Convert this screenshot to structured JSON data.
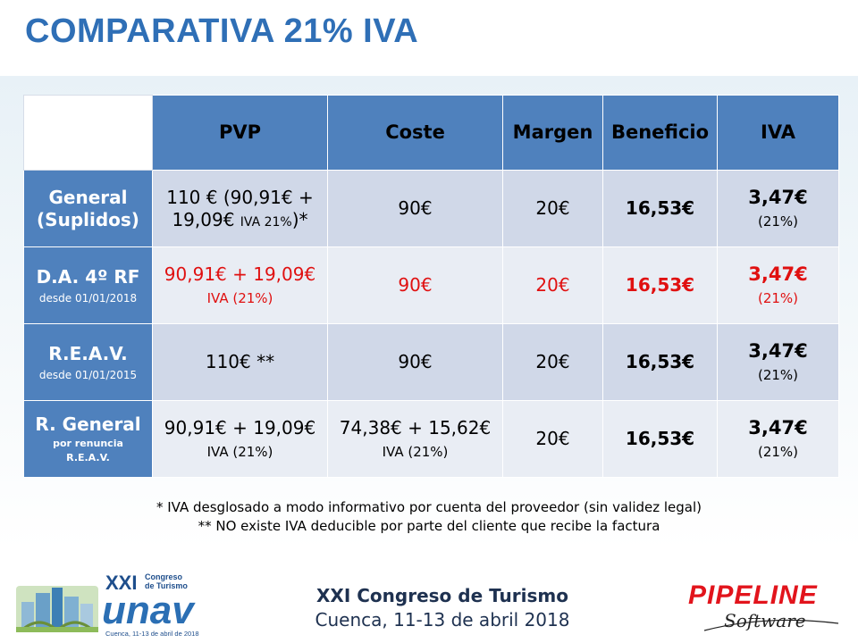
{
  "title": "COMPARATIVA 21% IVA",
  "table": {
    "headers": [
      "PVP",
      "Coste",
      "Margen",
      "Beneficio",
      "IVA"
    ],
    "rows": [
      {
        "label": "General (Suplidos)",
        "label_line1": "General",
        "label_line2": "(Suplidos)",
        "sublabel": "",
        "pvp_line1": "110 € (90,91€ +",
        "pvp_line2a": "19,09€",
        "pvp_line2b": "IVA 21%",
        "pvp_line2c": ")*",
        "coste": "90€",
        "margen": "20€",
        "beneficio": "16,53€",
        "iva": "3,47€",
        "iva_pct": "(21%)"
      },
      {
        "label": "D.A. 4º RF",
        "sublabel": "desde 01/01/2018",
        "pvp_line1": "90,91€ + 19,09€",
        "pvp_line2": "IVA (21%)",
        "coste": "90€",
        "margen": "20€",
        "beneficio": "16,53€",
        "iva": "3,47€",
        "iva_pct": "(21%)"
      },
      {
        "label": "R.E.A.V.",
        "sublabel": "desde 01/01/2015",
        "pvp": "110€ **",
        "coste": "90€",
        "margen": "20€",
        "beneficio": "16,53€",
        "iva": "3,47€",
        "iva_pct": "(21%)"
      },
      {
        "label": "R. General",
        "sublabel_line1": "por renuncia",
        "sublabel_line2": "R.E.A.V.",
        "pvp_line1": "90,91€ + 19,09€",
        "pvp_line2": "IVA (21%)",
        "coste_line1": "74,38€ + 15,62€",
        "coste_line2": "IVA (21%)",
        "margen": "20€",
        "beneficio": "16,53€",
        "iva": "3,47€",
        "iva_pct": "(21%)"
      }
    ]
  },
  "notes": [
    "* IVA desglosado a modo informativo por cuenta del proveedor (sin validez legal)",
    "** NO existe IVA deducible por parte del cliente que recibe la factura"
  ],
  "footer": {
    "line1": "XXI Congreso de Turismo",
    "line2": "Cuenca, 11-13 de abril 2018"
  },
  "logo_unav": {
    "roman": "XXI",
    "congreso": "Congreso",
    "de_turismo": "de Turismo",
    "brand": "unav",
    "caption": "Cuenca, 11-13 de abril de 2018"
  },
  "logo_pipeline": {
    "brand": "PIPELINE",
    "sub": "Software"
  },
  "colors": {
    "title": "#2f6fb6",
    "header_bg": "#4f81bd",
    "row_dark": "#d0d8e8",
    "row_light": "#e9edf4",
    "highlight_red": "#e01010",
    "footer_text": "#1e3150"
  }
}
